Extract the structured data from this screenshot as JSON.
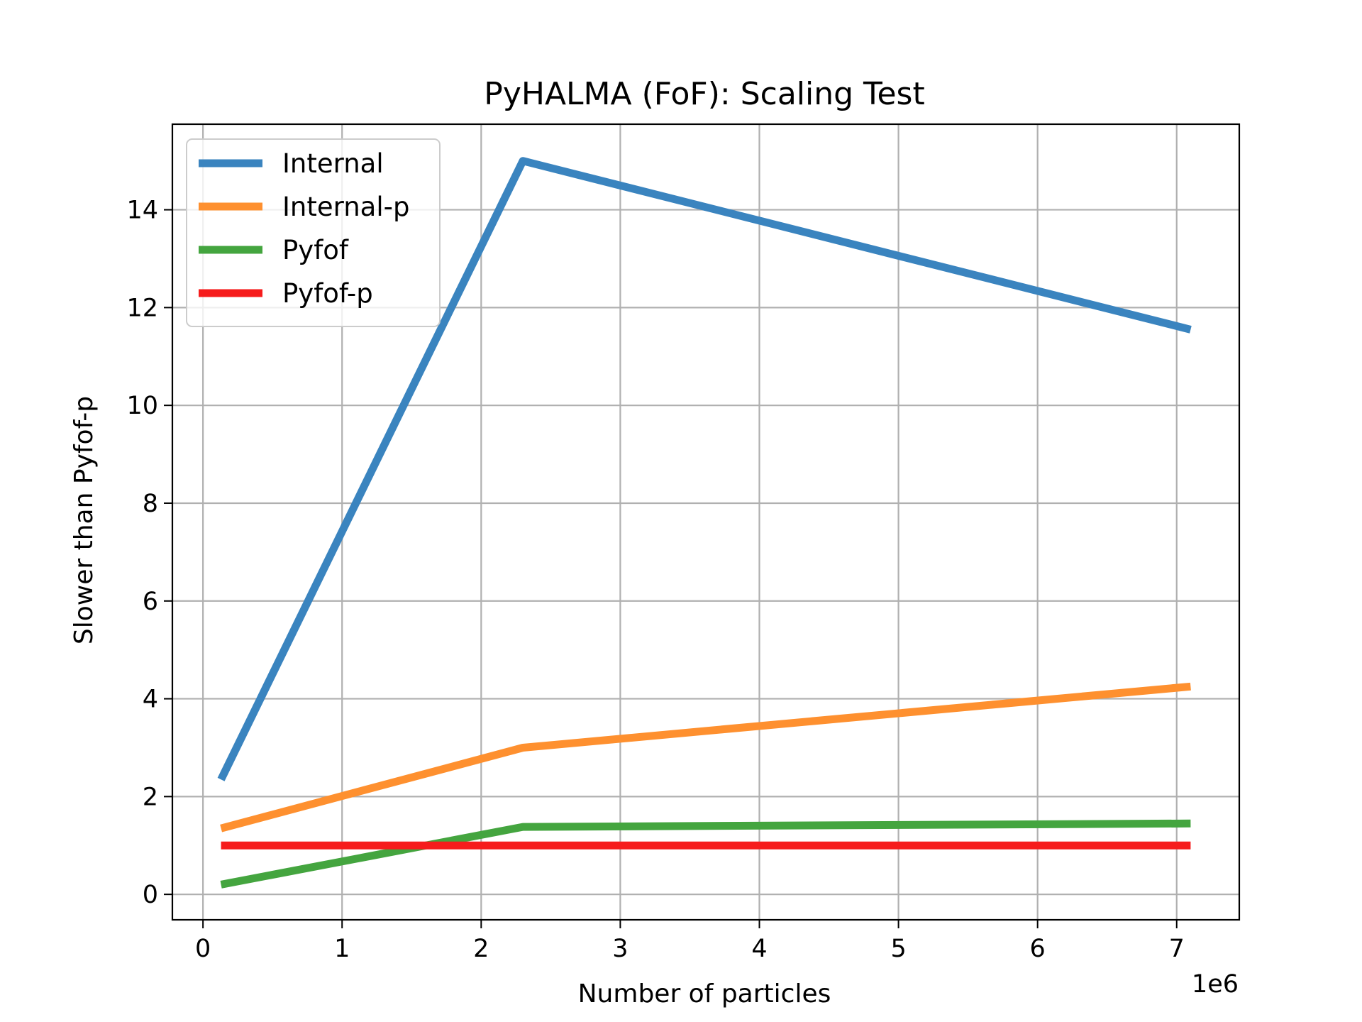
{
  "chart_data": {
    "type": "line",
    "title": "PyHALMA (FoF): Scaling Test",
    "xlabel": "Number of particles",
    "ylabel": "Slower than Pyfof-p",
    "x_offset_label": "1e6",
    "xlim": [
      -0.22,
      7.45
    ],
    "ylim": [
      -0.52,
      15.75
    ],
    "xticks": [
      0,
      1,
      2,
      3,
      4,
      5,
      6,
      7
    ],
    "xtick_labels": [
      "0",
      "1",
      "2",
      "3",
      "4",
      "5",
      "6",
      "7"
    ],
    "yticks": [
      0,
      2,
      4,
      6,
      8,
      10,
      12,
      14
    ],
    "ytick_labels": [
      "0",
      "2",
      "4",
      "6",
      "8",
      "10",
      "12",
      "14"
    ],
    "grid": true,
    "legend_position": "top-left",
    "series": [
      {
        "name": "Internal",
        "color": "#3a84bf",
        "x": [
          0.13,
          2.3,
          7.1
        ],
        "y": [
          2.35,
          15.0,
          11.55
        ]
      },
      {
        "name": "Internal-p",
        "color": "#fe902f",
        "x": [
          0.13,
          2.3,
          7.1
        ],
        "y": [
          1.35,
          3.0,
          4.25
        ]
      },
      {
        "name": "Pyfof",
        "color": "#44a53f",
        "x": [
          0.13,
          2.3,
          7.1
        ],
        "y": [
          0.2,
          1.38,
          1.45
        ]
      },
      {
        "name": "Pyfof-p",
        "color": "#f61c1c",
        "x": [
          0.13,
          2.3,
          7.1
        ],
        "y": [
          1.0,
          1.0,
          1.0
        ]
      }
    ]
  }
}
